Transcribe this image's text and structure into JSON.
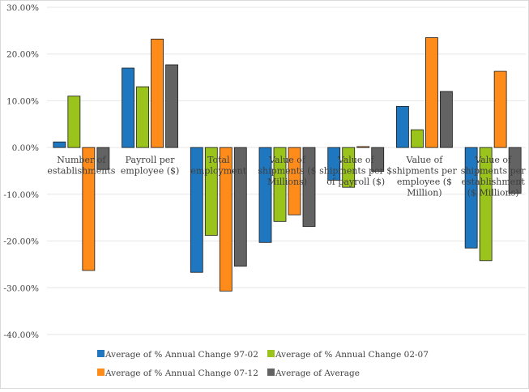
{
  "chart_data": {
    "type": "bar",
    "categories": [
      "Number of establishments",
      "Payroll per employee ($)",
      "Total employment",
      "Value of shipments ($ Millions)",
      "Value of shipments per $ of payroll ($)",
      "Value of shipments per employee ($ Million)",
      "Value of shipments per establishment ($ Millions)"
    ],
    "series": [
      {
        "name": "Average of % Annual Change 97-02",
        "color": "#1f77c0",
        "values": [
          1.2,
          17.0,
          -26.7,
          -20.3,
          -7.0,
          8.8,
          -21.5
        ]
      },
      {
        "name": "Average of % Annual Change 02-07",
        "color": "#9ac31c",
        "values": [
          11.0,
          13.0,
          -18.8,
          -15.8,
          -8.5,
          3.8,
          -24.2
        ]
      },
      {
        "name": "Average of % Annual Change 07-12",
        "color": "#ff8c1a",
        "values": [
          -26.3,
          23.2,
          -30.7,
          -14.4,
          0.2,
          23.5,
          16.3
        ]
      },
      {
        "name": "Average of Average",
        "color": "#636363",
        "values": [
          -4.7,
          17.7,
          -25.4,
          -16.9,
          -5.1,
          12.0,
          -9.8
        ]
      }
    ],
    "yticks": [
      "30.00%",
      "20.00%",
      "10.00%",
      "0.00%",
      "-10.00%",
      "-20.00%",
      "-30.00%",
      "-40.00%"
    ],
    "ylim": [
      -40,
      30
    ],
    "grid": true,
    "legend_position": "bottom"
  }
}
